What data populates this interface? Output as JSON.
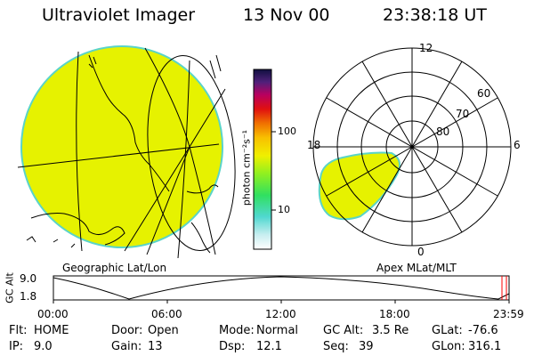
{
  "header": {
    "instrument": "Ultraviolet Imager",
    "date": "13 Nov 00",
    "time": "23:38:18 UT"
  },
  "geo_panel": {
    "caption": "Geographic Lat/Lon"
  },
  "polar_panel": {
    "caption": "Apex MLat/MLT",
    "mlt_labels": [
      "12",
      "6",
      "0",
      "18"
    ],
    "mlat_labels": [
      "60",
      "70",
      "80"
    ]
  },
  "colorbar": {
    "unit_label": "photon cm⁻²s⁻¹",
    "tick_labels": [
      "100",
      "10"
    ],
    "scale": "log"
  },
  "altitude_plot": {
    "ylabel": "GC Alt",
    "ytick_labels": [
      "9.0",
      "1.8"
    ],
    "xtick_labels": [
      "00:00",
      "06:00",
      "12:00",
      "18:00",
      "23:59"
    ]
  },
  "status": {
    "flt_label": "Flt:",
    "flt_value": "HOME",
    "ip_label": "IP:",
    "ip_value": "9.0",
    "door_label": "Door:",
    "door_value": "Open",
    "gain_label": "Gain:",
    "gain_value": "13",
    "mode_label": "Mode:",
    "mode_value": "Normal",
    "dsp_label": "Dsp:",
    "dsp_value": "12.1",
    "gcalt_label": "GC Alt:",
    "gcalt_value": "3.5 Re",
    "seq_label": "Seq:",
    "seq_value": "39",
    "glat_label": "GLat:",
    "glat_value": "-76.6",
    "glon_label": "GLon:",
    "glon_value": "316.1"
  },
  "colors": {
    "emission_fill": "#e6f200",
    "emission_edge": "#5ad4c8",
    "lines": "#000000",
    "current_time_marker": "#ff0000"
  }
}
